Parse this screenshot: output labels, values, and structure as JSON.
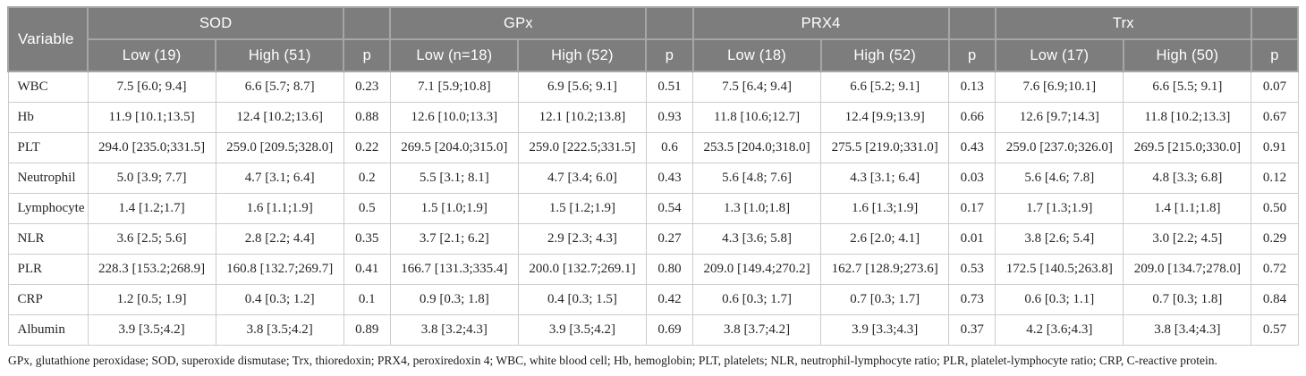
{
  "colors": {
    "header_bg": "#7d7d7d",
    "header_text": "#ffffff",
    "header_divider": "#a6a6a6",
    "body_border": "#cccccc",
    "body_text": "#262626"
  },
  "table": {
    "variable_header": "Variable",
    "groups": [
      {
        "name": "SOD",
        "low": "Low (19)",
        "high": "High (51)",
        "p": "p"
      },
      {
        "name": "GPx",
        "low": "Low (n=18)",
        "high": "High (52)",
        "p": "p"
      },
      {
        "name": "PRX4",
        "low": "Low (18)",
        "high": "High (52)",
        "p": "p"
      },
      {
        "name": "Trx",
        "low": "Low (17)",
        "high": "High (50)",
        "p": "p"
      }
    ],
    "rows": [
      {
        "variable": "WBC",
        "cells": [
          "7.5 [6.0; 9.4]",
          "6.6 [5.7; 8.7]",
          "0.23",
          "7.1 [5.9;10.8]",
          "6.9 [5.6; 9.1]",
          "0.51",
          "7.5 [6.4; 9.4]",
          "6.6 [5.2; 9.1]",
          "0.13",
          "7.6 [6.9;10.1]",
          "6.6 [5.5; 9.1]",
          "0.07"
        ]
      },
      {
        "variable": "Hb",
        "cells": [
          "11.9 [10.1;13.5]",
          "12.4 [10.2;13.6]",
          "0.88",
          "12.6 [10.0;13.3]",
          "12.1 [10.2;13.8]",
          "0.93",
          "11.8 [10.6;12.7]",
          "12.4 [9.9;13.9]",
          "0.66",
          "12.6 [9.7;14.3]",
          "11.8 [10.2;13.3]",
          "0.67"
        ]
      },
      {
        "variable": "PLT",
        "cells": [
          "294.0 [235.0;331.5]",
          "259.0 [209.5;328.0]",
          "0.22",
          "269.5 [204.0;315.0]",
          "259.0 [222.5;331.5]",
          "0.6",
          "253.5 [204.0;318.0]",
          "275.5 [219.0;331.0]",
          "0.43",
          "259.0 [237.0;326.0]",
          "269.5 [215.0;330.0]",
          "0.91"
        ]
      },
      {
        "variable": "Neutrophil",
        "cells": [
          "5.0 [3.9; 7.7]",
          "4.7 [3.1; 6.4]",
          "0.2",
          "5.5 [3.1; 8.1]",
          "4.7 [3.4; 6.0]",
          "0.43",
          "5.6 [4.8; 7.6]",
          "4.3 [3.1; 6.4]",
          "0.03",
          "5.6 [4.6; 7.8]",
          "4.8 [3.3; 6.8]",
          "0.12"
        ]
      },
      {
        "variable": "Lymphocyte",
        "cells": [
          "1.4 [1.2;1.7]",
          "1.6 [1.1;1.9]",
          "0.5",
          "1.5 [1.0;1.9]",
          "1.5 [1.2;1.9]",
          "0.54",
          "1.3 [1.0;1.8]",
          "1.6 [1.3;1.9]",
          "0.17",
          "1.7 [1.3;1.9]",
          "1.4 [1.1;1.8]",
          "0.50"
        ]
      },
      {
        "variable": "NLR",
        "cells": [
          "3.6 [2.5; 5.6]",
          "2.8 [2.2; 4.4]",
          "0.35",
          "3.7 [2.1; 6.2]",
          "2.9 [2.3; 4.3]",
          "0.27",
          "4.3 [3.6; 5.8]",
          "2.6 [2.0; 4.1]",
          "0.01",
          "3.8 [2.6; 5.4]",
          "3.0 [2.2; 4.5]",
          "0.29"
        ]
      },
      {
        "variable": "PLR",
        "cells": [
          "228.3 [153.2;268.9]",
          "160.8 [132.7;269.7]",
          "0.41",
          "166.7 [131.3;335.4]",
          "200.0 [132.7;269.1]",
          "0.80",
          "209.0 [149.4;270.2]",
          "162.7 [128.9;273.6]",
          "0.53",
          "172.5 [140.5;263.8]",
          "209.0 [134.7;278.0]",
          "0.72"
        ]
      },
      {
        "variable": "CRP",
        "cells": [
          "1.2 [0.5; 1.9]",
          "0.4 [0.3; 1.2]",
          "0.1",
          "0.9 [0.3; 1.8]",
          "0.4 [0.3; 1.5]",
          "0.42",
          "0.6 [0.3; 1.7]",
          "0.7 [0.3; 1.7]",
          "0.73",
          "0.6 [0.3; 1.1]",
          "0.7 [0.3; 1.8]",
          "0.84"
        ]
      },
      {
        "variable": "Albumin",
        "cells": [
          "3.9 [3.5;4.2]",
          "3.8 [3.5;4.2]",
          "0.89",
          "3.8 [3.2;4.3]",
          "3.9 [3.5;4.2]",
          "0.69",
          "3.8 [3.7;4.2]",
          "3.9 [3.3;4.3]",
          "0.37",
          "4.2 [3.6;4.3]",
          "3.8 [3.4;4.3]",
          "0.57"
        ]
      }
    ],
    "footnote": "GPx, glutathione peroxidase; SOD, superoxide dismutase; Trx, thioredoxin; PRX4, peroxiredoxin 4; WBC, white blood cell; Hb, hemoglobin; PLT, platelets; NLR, neutrophil-lymphocyte ratio; PLR, platelet-lymphocyte ratio; CRP, C-reactive protein."
  }
}
